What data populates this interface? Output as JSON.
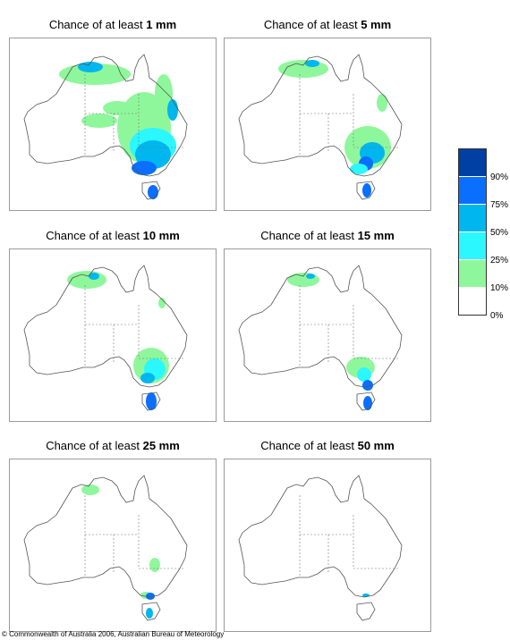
{
  "panels": [
    {
      "prefix": "Chance of at least ",
      "amount": "1 mm"
    },
    {
      "prefix": "Chance of at least ",
      "amount": "5 mm"
    },
    {
      "prefix": "Chance of at least ",
      "amount": "10 mm"
    },
    {
      "prefix": "Chance of at least ",
      "amount": "15 mm"
    },
    {
      "prefix": "Chance of at least ",
      "amount": "25 mm"
    },
    {
      "prefix": "Chance of at least ",
      "amount": "50 mm"
    }
  ],
  "legend": {
    "labels": [
      "90%",
      "75%",
      "50%",
      "25%",
      "10%",
      "0%"
    ],
    "colors": [
      "#003fa3",
      "#0a6fff",
      "#00b6ee",
      "#2bf7ff",
      "#8ff79b",
      "#ffffff"
    ]
  },
  "footer": {
    "copyright": "© Commonwealth of Australia 2006, Australian Bureau of Meteorology"
  },
  "colors": {
    "c10": "#8ff79b",
    "c25": "#2bf7ff",
    "c50": "#00b6ee",
    "c75": "#0a6fff",
    "c90": "#003fa3"
  }
}
